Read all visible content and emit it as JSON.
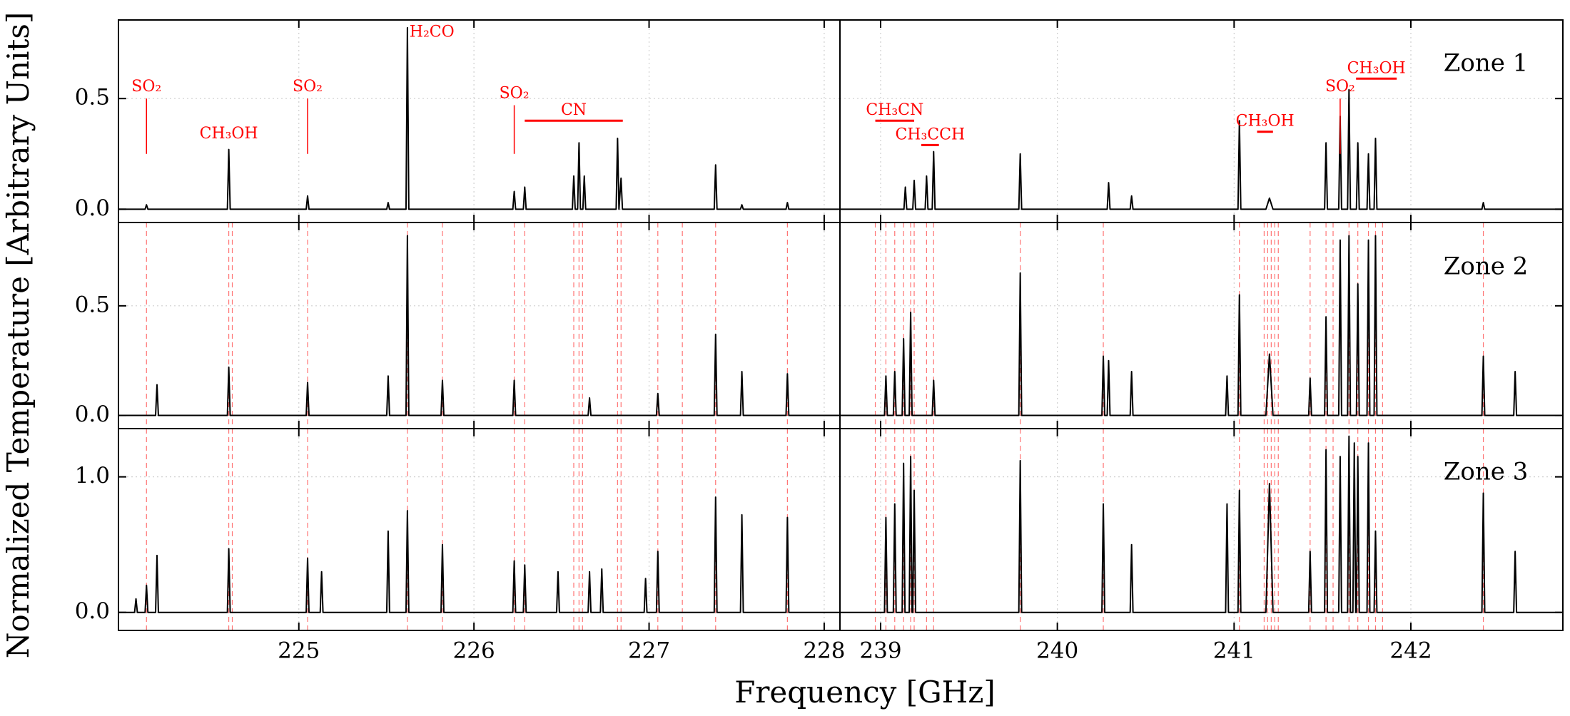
{
  "xlabel": "Frequency [GHz]",
  "ylabel": "Normalized Temperature [Arbitrary Units]",
  "grid": true,
  "line_color": "#000000",
  "annotation_color": "#ff0000",
  "x_axes": [
    {
      "xlim": [
        223.97,
        228.09
      ],
      "xticks": [
        225,
        226,
        227,
        228
      ]
    },
    {
      "xlim": [
        238.77,
        242.86
      ],
      "xticks": [
        239,
        240,
        241,
        242
      ]
    }
  ],
  "chart_data": [
    {
      "type": "line",
      "label": "Zone 1",
      "ylim": [
        -0.06,
        0.855
      ],
      "yticks": [
        {
          "value": 0,
          "label": "0.0"
        },
        {
          "value": 0.5,
          "label": "0.5"
        }
      ],
      "panels": [
        {
          "x": [
            223.97,
            224.122,
            224.13,
            224.138,
            224.592,
            224.6,
            224.608,
            225.042,
            225.05,
            225.058,
            225.502,
            225.51,
            225.518,
            225.612,
            225.62,
            225.628,
            226.222,
            226.23,
            226.238,
            226.282,
            226.29,
            226.298,
            226.562,
            226.57,
            226.578,
            226.592,
            226.6,
            226.608,
            226.622,
            226.63,
            226.638,
            226.812,
            226.82,
            226.828,
            226.84,
            226.848,
            227.372,
            227.38,
            227.388,
            227.522,
            227.53,
            227.538,
            227.782,
            227.79,
            227.798,
            228.09
          ],
          "values": [
            0,
            0,
            0.02,
            0,
            0,
            0.27,
            0,
            0,
            0.06,
            0,
            0,
            0.03,
            0,
            0,
            0.82,
            0,
            0,
            0.08,
            0,
            0,
            0.1,
            0,
            0,
            0.15,
            0,
            0,
            0.3,
            0,
            0,
            0.15,
            0,
            0,
            0.32,
            0,
            0.14,
            0,
            0,
            0.2,
            0,
            0,
            0.02,
            0,
            0,
            0.03,
            0,
            0
          ],
          "annotations": [
            {
              "text": "SO₂",
              "x": 224.13,
              "tick": [
                0.25,
                0.5
              ]
            },
            {
              "text": "CH₃OH",
              "x": 224.6,
              "y": 0.32
            },
            {
              "text": "SO₂",
              "x": 225.05,
              "tick": [
                0.25,
                0.5
              ]
            },
            {
              "text": "H₂CO",
              "x": 225.76,
              "y": 0.78
            },
            {
              "text": "SO₂",
              "x": 226.23,
              "tick": [
                0.25,
                0.47
              ]
            },
            {
              "text": "CN",
              "x": [
                226.29,
                226.85
              ],
              "y": 0.4
            }
          ]
        },
        {
          "x": [
            238.77,
            239.132,
            239.14,
            239.148,
            239.182,
            239.19,
            239.198,
            239.252,
            239.26,
            239.268,
            239.292,
            239.3,
            239.308,
            239.782,
            239.79,
            239.798,
            240.282,
            240.29,
            240.298,
            240.412,
            240.42,
            240.428,
            241.022,
            241.03,
            241.038,
            241.18,
            241.2,
            241.22,
            241.512,
            241.52,
            241.528,
            241.592,
            241.6,
            241.608,
            241.642,
            241.65,
            241.658,
            241.692,
            241.7,
            241.708,
            241.752,
            241.76,
            241.768,
            241.792,
            241.8,
            241.808,
            242.402,
            242.41,
            242.418,
            242.86
          ],
          "values": [
            0,
            0,
            0.1,
            0,
            0,
            0.13,
            0,
            0,
            0.15,
            0,
            0,
            0.26,
            0,
            0,
            0.25,
            0,
            0,
            0.12,
            0,
            0,
            0.06,
            0,
            0,
            0.4,
            0,
            0,
            0.05,
            0,
            0,
            0.3,
            0,
            0,
            0.42,
            0,
            0,
            0.54,
            0,
            0,
            0.3,
            0,
            0,
            0.25,
            0,
            0,
            0.32,
            0,
            0,
            0.03,
            0,
            0
          ],
          "annotations": [
            {
              "text": "CH₃CN",
              "x": [
                238.97,
                239.19
              ],
              "y": 0.4
            },
            {
              "text": "CH₃CCH",
              "x": [
                239.23,
                239.33
              ],
              "y": 0.29
            },
            {
              "text": "CH₃OH",
              "x": [
                241.13,
                241.22
              ],
              "y": 0.35
            },
            {
              "text": "SO₂",
              "x": 241.6,
              "tick": [
                0.25,
                0.5
              ]
            },
            {
              "text": "CH₃OH",
              "x": [
                241.69,
                241.92
              ],
              "y": 0.59
            }
          ]
        }
      ]
    },
    {
      "type": "line",
      "label": "Zone 2",
      "ylim": [
        -0.06,
        0.88
      ],
      "yticks": [
        {
          "value": 0,
          "label": "0.0"
        },
        {
          "value": 0.5,
          "label": "0.5"
        }
      ],
      "panels": [
        {
          "x": [
            223.97,
            224.182,
            224.19,
            224.198,
            224.592,
            224.6,
            224.608,
            225.042,
            225.05,
            225.058,
            225.502,
            225.51,
            225.518,
            225.612,
            225.62,
            225.628,
            225.812,
            225.82,
            225.828,
            226.222,
            226.23,
            226.238,
            226.652,
            226.66,
            226.668,
            227.042,
            227.05,
            227.058,
            227.372,
            227.38,
            227.388,
            227.522,
            227.53,
            227.538,
            227.782,
            227.79,
            227.798,
            228.09
          ],
          "values": [
            0,
            0,
            0.14,
            0,
            0,
            0.22,
            0,
            0,
            0.15,
            0,
            0,
            0.18,
            0,
            0,
            0.82,
            0,
            0,
            0.16,
            0,
            0,
            0.16,
            0,
            0,
            0.08,
            0,
            0,
            0.1,
            0,
            0,
            0.37,
            0,
            0,
            0.2,
            0,
            0,
            0.19,
            0,
            0
          ],
          "markers": [
            224.13,
            224.6,
            224.62,
            225.05,
            225.62,
            225.82,
            226.23,
            226.29,
            226.57,
            226.6,
            226.62,
            226.82,
            226.84,
            227.05,
            227.19,
            227.38,
            227.79
          ]
        },
        {
          "x": [
            238.77,
            239.022,
            239.03,
            239.038,
            239.072,
            239.08,
            239.088,
            239.122,
            239.13,
            239.138,
            239.162,
            239.17,
            239.178,
            239.292,
            239.3,
            239.308,
            239.782,
            239.79,
            239.798,
            240.252,
            240.26,
            240.268,
            240.282,
            240.29,
            240.298,
            240.412,
            240.42,
            240.428,
            240.952,
            240.96,
            240.968,
            241.022,
            241.03,
            241.038,
            241.18,
            241.2,
            241.22,
            241.422,
            241.43,
            241.438,
            241.512,
            241.52,
            241.528,
            241.592,
            241.6,
            241.608,
            241.642,
            241.65,
            241.658,
            241.692,
            241.7,
            241.708,
            241.752,
            241.76,
            241.768,
            241.792,
            241.8,
            241.808,
            242.402,
            242.41,
            242.418,
            242.582,
            242.59,
            242.598,
            242.86
          ],
          "values": [
            0,
            0,
            0.18,
            0,
            0,
            0.2,
            0,
            0,
            0.35,
            0,
            0,
            0.47,
            0,
            0,
            0.16,
            0,
            0,
            0.65,
            0,
            0,
            0.27,
            0,
            0,
            0.25,
            0,
            0,
            0.2,
            0,
            0,
            0.18,
            0,
            0,
            0.55,
            0,
            0,
            0.28,
            0,
            0,
            0.17,
            0,
            0,
            0.45,
            0,
            0,
            0.8,
            0,
            0,
            0.82,
            0,
            0,
            0.6,
            0,
            0,
            0.8,
            0,
            0,
            0.82,
            0,
            0,
            0.27,
            0,
            0,
            0.2,
            0,
            0
          ],
          "markers": [
            238.97,
            239.03,
            239.08,
            239.13,
            239.17,
            239.19,
            239.26,
            239.3,
            239.79,
            240.26,
            241.03,
            241.17,
            241.19,
            241.21,
            241.23,
            241.25,
            241.43,
            241.52,
            241.56,
            241.65,
            241.7,
            241.76,
            241.8,
            241.84,
            242.41
          ]
        }
      ]
    },
    {
      "type": "line",
      "label": "Zone 3",
      "ylim": [
        -0.133,
        1.356
      ],
      "yticks": [
        {
          "value": 0,
          "label": "0.0"
        },
        {
          "value": 1,
          "label": "1.0"
        }
      ],
      "panels": [
        {
          "x": [
            223.97,
            224.062,
            224.07,
            224.078,
            224.122,
            224.13,
            224.138,
            224.182,
            224.19,
            224.198,
            224.592,
            224.6,
            224.608,
            225.042,
            225.05,
            225.058,
            225.122,
            225.13,
            225.138,
            225.502,
            225.51,
            225.518,
            225.612,
            225.62,
            225.628,
            225.812,
            225.82,
            225.828,
            226.222,
            226.23,
            226.238,
            226.282,
            226.29,
            226.298,
            226.472,
            226.48,
            226.488,
            226.652,
            226.66,
            226.668,
            226.722,
            226.73,
            226.738,
            226.972,
            226.98,
            226.988,
            227.042,
            227.05,
            227.058,
            227.372,
            227.38,
            227.388,
            227.522,
            227.53,
            227.538,
            227.782,
            227.79,
            227.798,
            228.09
          ],
          "values": [
            0,
            0,
            0.1,
            0,
            0,
            0.2,
            0,
            0,
            0.42,
            0,
            0,
            0.47,
            0,
            0,
            0.4,
            0,
            0,
            0.3,
            0,
            0,
            0.6,
            0,
            0,
            0.75,
            0,
            0,
            0.5,
            0,
            0,
            0.38,
            0,
            0,
            0.35,
            0,
            0,
            0.3,
            0,
            0,
            0.3,
            0,
            0,
            0.32,
            0,
            0,
            0.25,
            0,
            0,
            0.45,
            0,
            0,
            0.85,
            0,
            0,
            0.72,
            0,
            0,
            0.7,
            0,
            0
          ],
          "markers": [
            224.13,
            224.6,
            224.62,
            225.05,
            225.62,
            225.82,
            226.23,
            226.29,
            226.57,
            226.6,
            226.62,
            226.82,
            226.84,
            227.05,
            227.19,
            227.38,
            227.79
          ]
        },
        {
          "x": [
            238.77,
            239.022,
            239.03,
            239.038,
            239.072,
            239.08,
            239.088,
            239.122,
            239.13,
            239.138,
            239.162,
            239.17,
            239.178,
            239.182,
            239.19,
            239.198,
            239.782,
            239.79,
            239.798,
            240.252,
            240.26,
            240.268,
            240.412,
            240.42,
            240.428,
            240.952,
            240.96,
            240.968,
            241.022,
            241.03,
            241.038,
            241.18,
            241.2,
            241.22,
            241.422,
            241.43,
            241.438,
            241.512,
            241.52,
            241.528,
            241.592,
            241.6,
            241.608,
            241.642,
            241.65,
            241.658,
            241.672,
            241.68,
            241.688,
            241.692,
            241.7,
            241.708,
            241.752,
            241.76,
            241.768,
            241.792,
            241.8,
            241.808,
            242.402,
            242.41,
            242.418,
            242.582,
            242.59,
            242.598,
            242.86
          ],
          "values": [
            0,
            0,
            0.7,
            0,
            0,
            0.8,
            0,
            0,
            1.1,
            0,
            0,
            1.15,
            0,
            0,
            0.9,
            0,
            0,
            1.12,
            0,
            0,
            0.8,
            0,
            0,
            0.5,
            0,
            0,
            0.8,
            0,
            0,
            0.9,
            0,
            0,
            0.95,
            0,
            0,
            0.45,
            0,
            0,
            1.2,
            0,
            0,
            1.15,
            0,
            0,
            1.3,
            0,
            0,
            1.25,
            0,
            0,
            1.15,
            0,
            0,
            1.25,
            0,
            0,
            0.6,
            0,
            0,
            0.88,
            0,
            0,
            0.45,
            0,
            0
          ],
          "markers": [
            238.97,
            239.03,
            239.08,
            239.13,
            239.17,
            239.19,
            239.26,
            239.3,
            239.79,
            240.26,
            241.03,
            241.17,
            241.19,
            241.21,
            241.23,
            241.25,
            241.43,
            241.52,
            241.56,
            241.65,
            241.7,
            241.76,
            241.8,
            241.84,
            242.41
          ]
        }
      ]
    }
  ]
}
